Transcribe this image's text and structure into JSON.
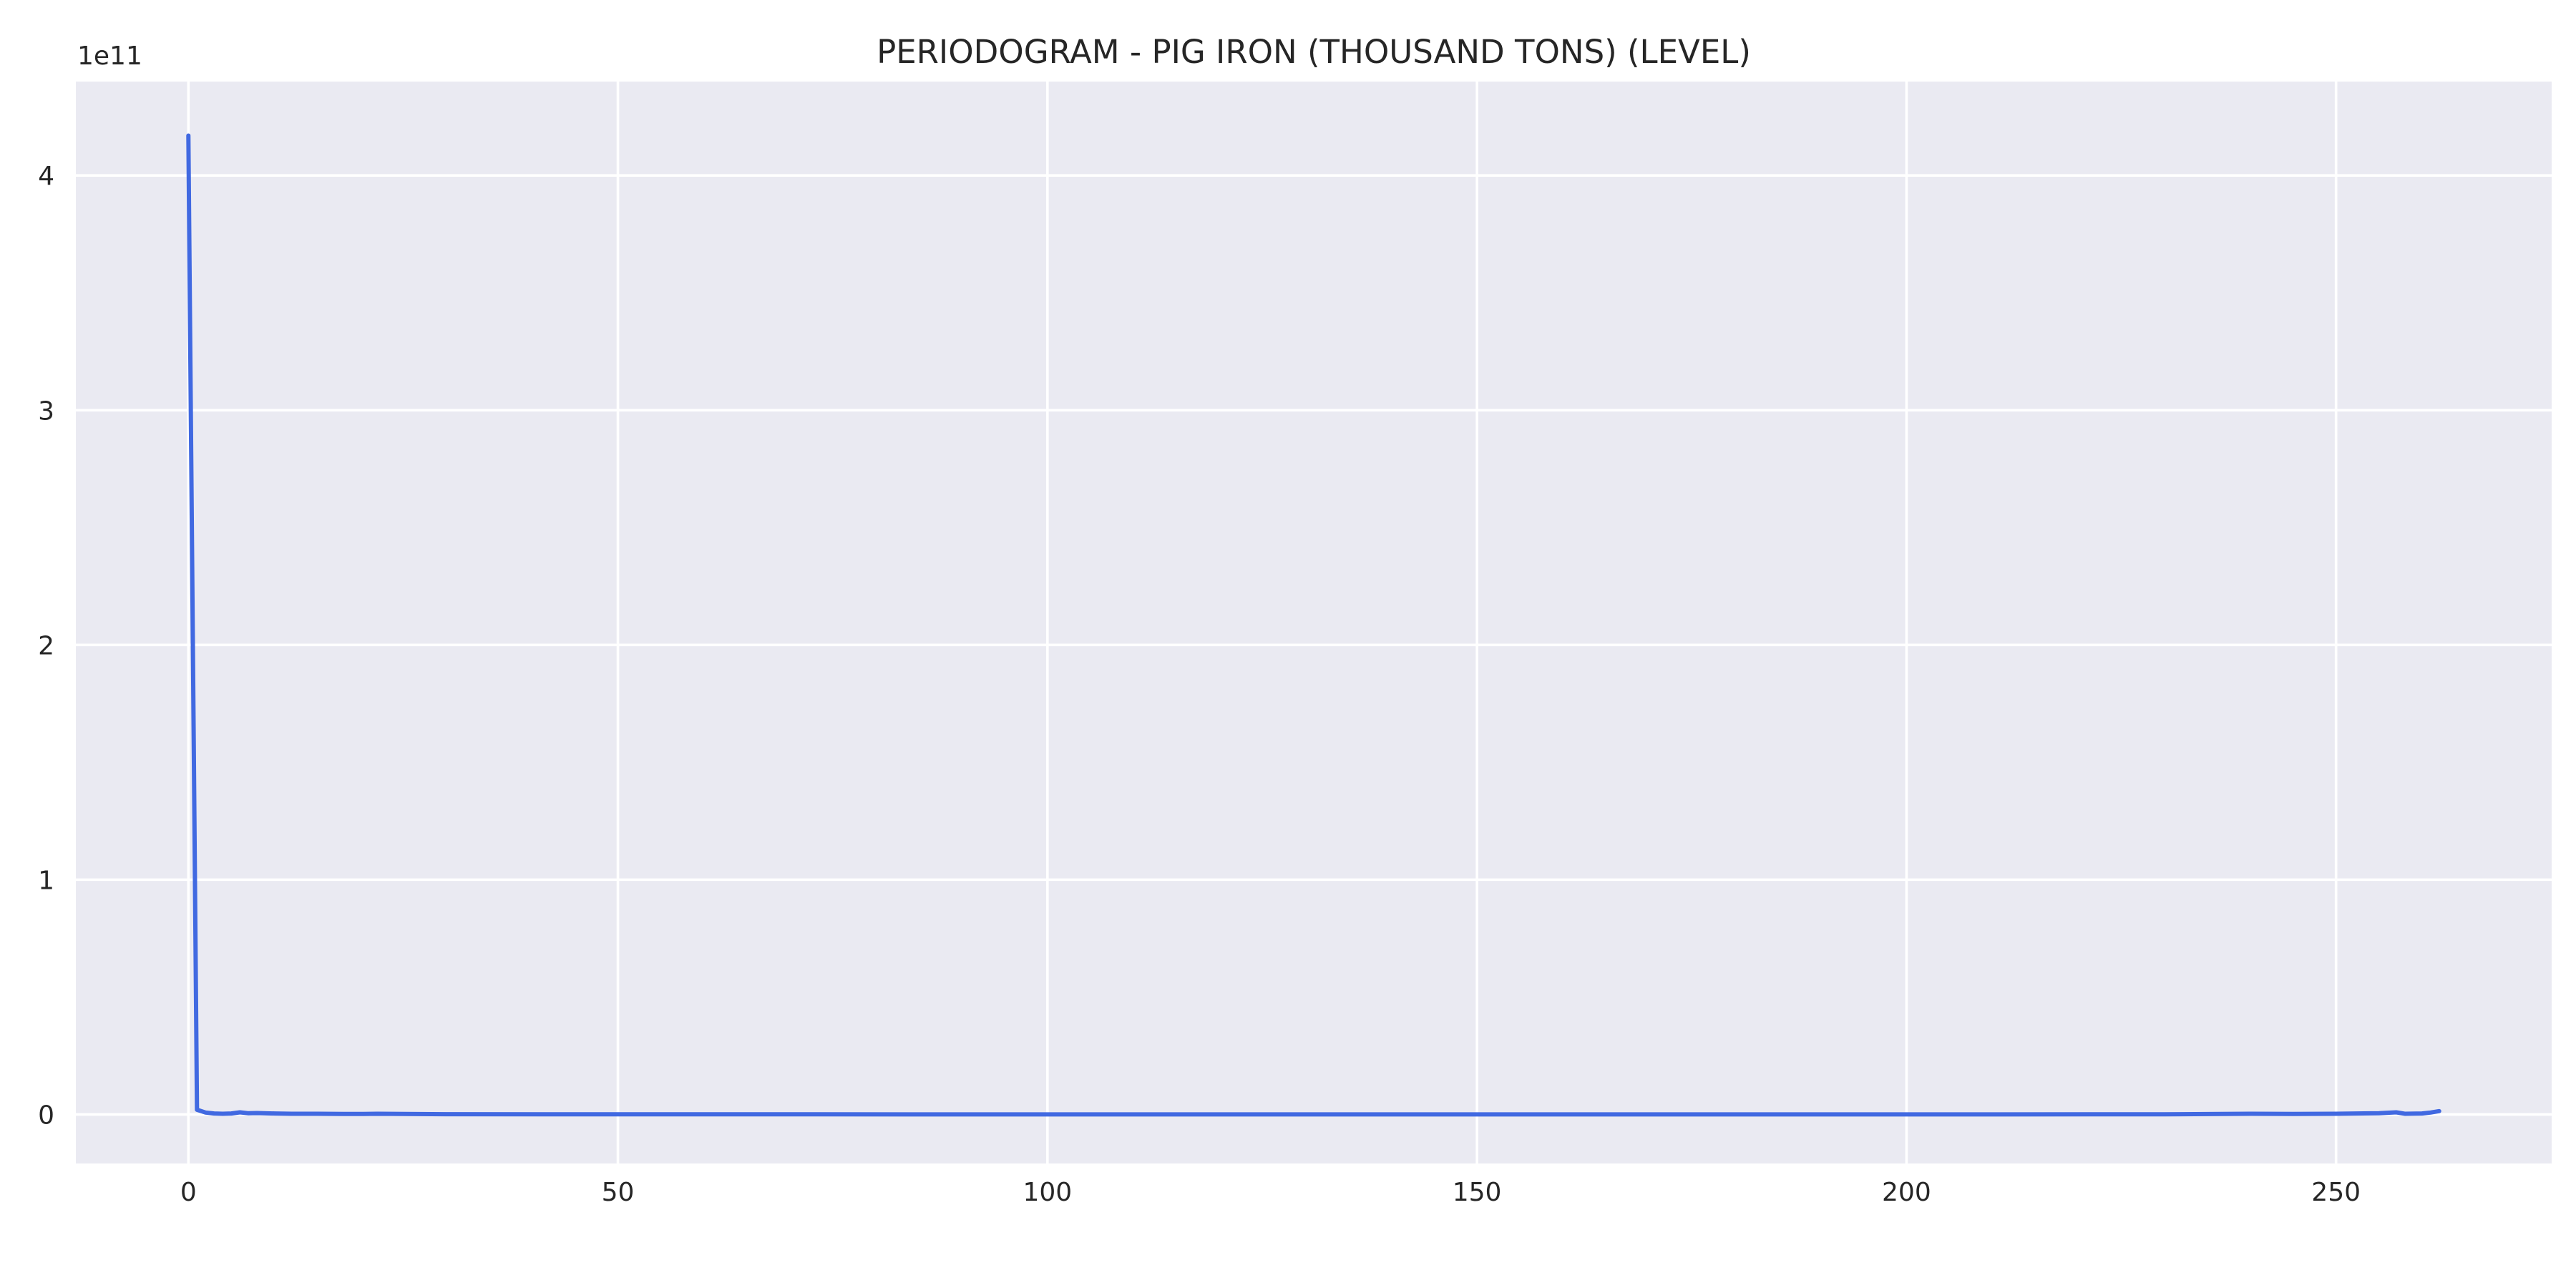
{
  "chart_data": {
    "type": "line",
    "title": "PERIODOGRAM - PIG IRON (THOUSAND TONS) (LEVEL)",
    "xlabel": "",
    "ylabel": "",
    "y_offset_label": "1e11",
    "xlim": [
      -13.1,
      275.1
    ],
    "ylim": [
      -0.209,
      4.4
    ],
    "y_scale_note": "values in units of 1e11",
    "grid": true,
    "legend": "none",
    "colors": {
      "line": "#4169e1",
      "plot_background": "#eaeaf2",
      "grid": "#ffffff"
    },
    "x_ticks": [
      0,
      50,
      100,
      150,
      200,
      250
    ],
    "x_tick_labels": [
      "0",
      "50",
      "100",
      "150",
      "200",
      "250"
    ],
    "y_ticks": [
      0,
      1,
      2,
      3,
      4
    ],
    "y_tick_labels": [
      "0",
      "1",
      "2",
      "3",
      "4"
    ],
    "series": [
      {
        "x": [
          0,
          1,
          2,
          3,
          4,
          5,
          6,
          7,
          8,
          10,
          12,
          15,
          18,
          20,
          22,
          25,
          30,
          50,
          100,
          150,
          200,
          230,
          240,
          245,
          250,
          255,
          257,
          258,
          260,
          261,
          262
        ],
        "values": [
          4.17,
          0.02,
          0.008,
          0.004,
          0.003,
          0.004,
          0.009,
          0.005,
          0.006,
          0.004,
          0.003,
          0.003,
          0.002,
          0.002,
          0.003,
          0.002,
          0.001,
          0.0005,
          0.0003,
          0.0003,
          0.0003,
          0.0005,
          0.003,
          0.002,
          0.003,
          0.005,
          0.009,
          0.003,
          0.004,
          0.008,
          0.014
        ]
      }
    ]
  }
}
